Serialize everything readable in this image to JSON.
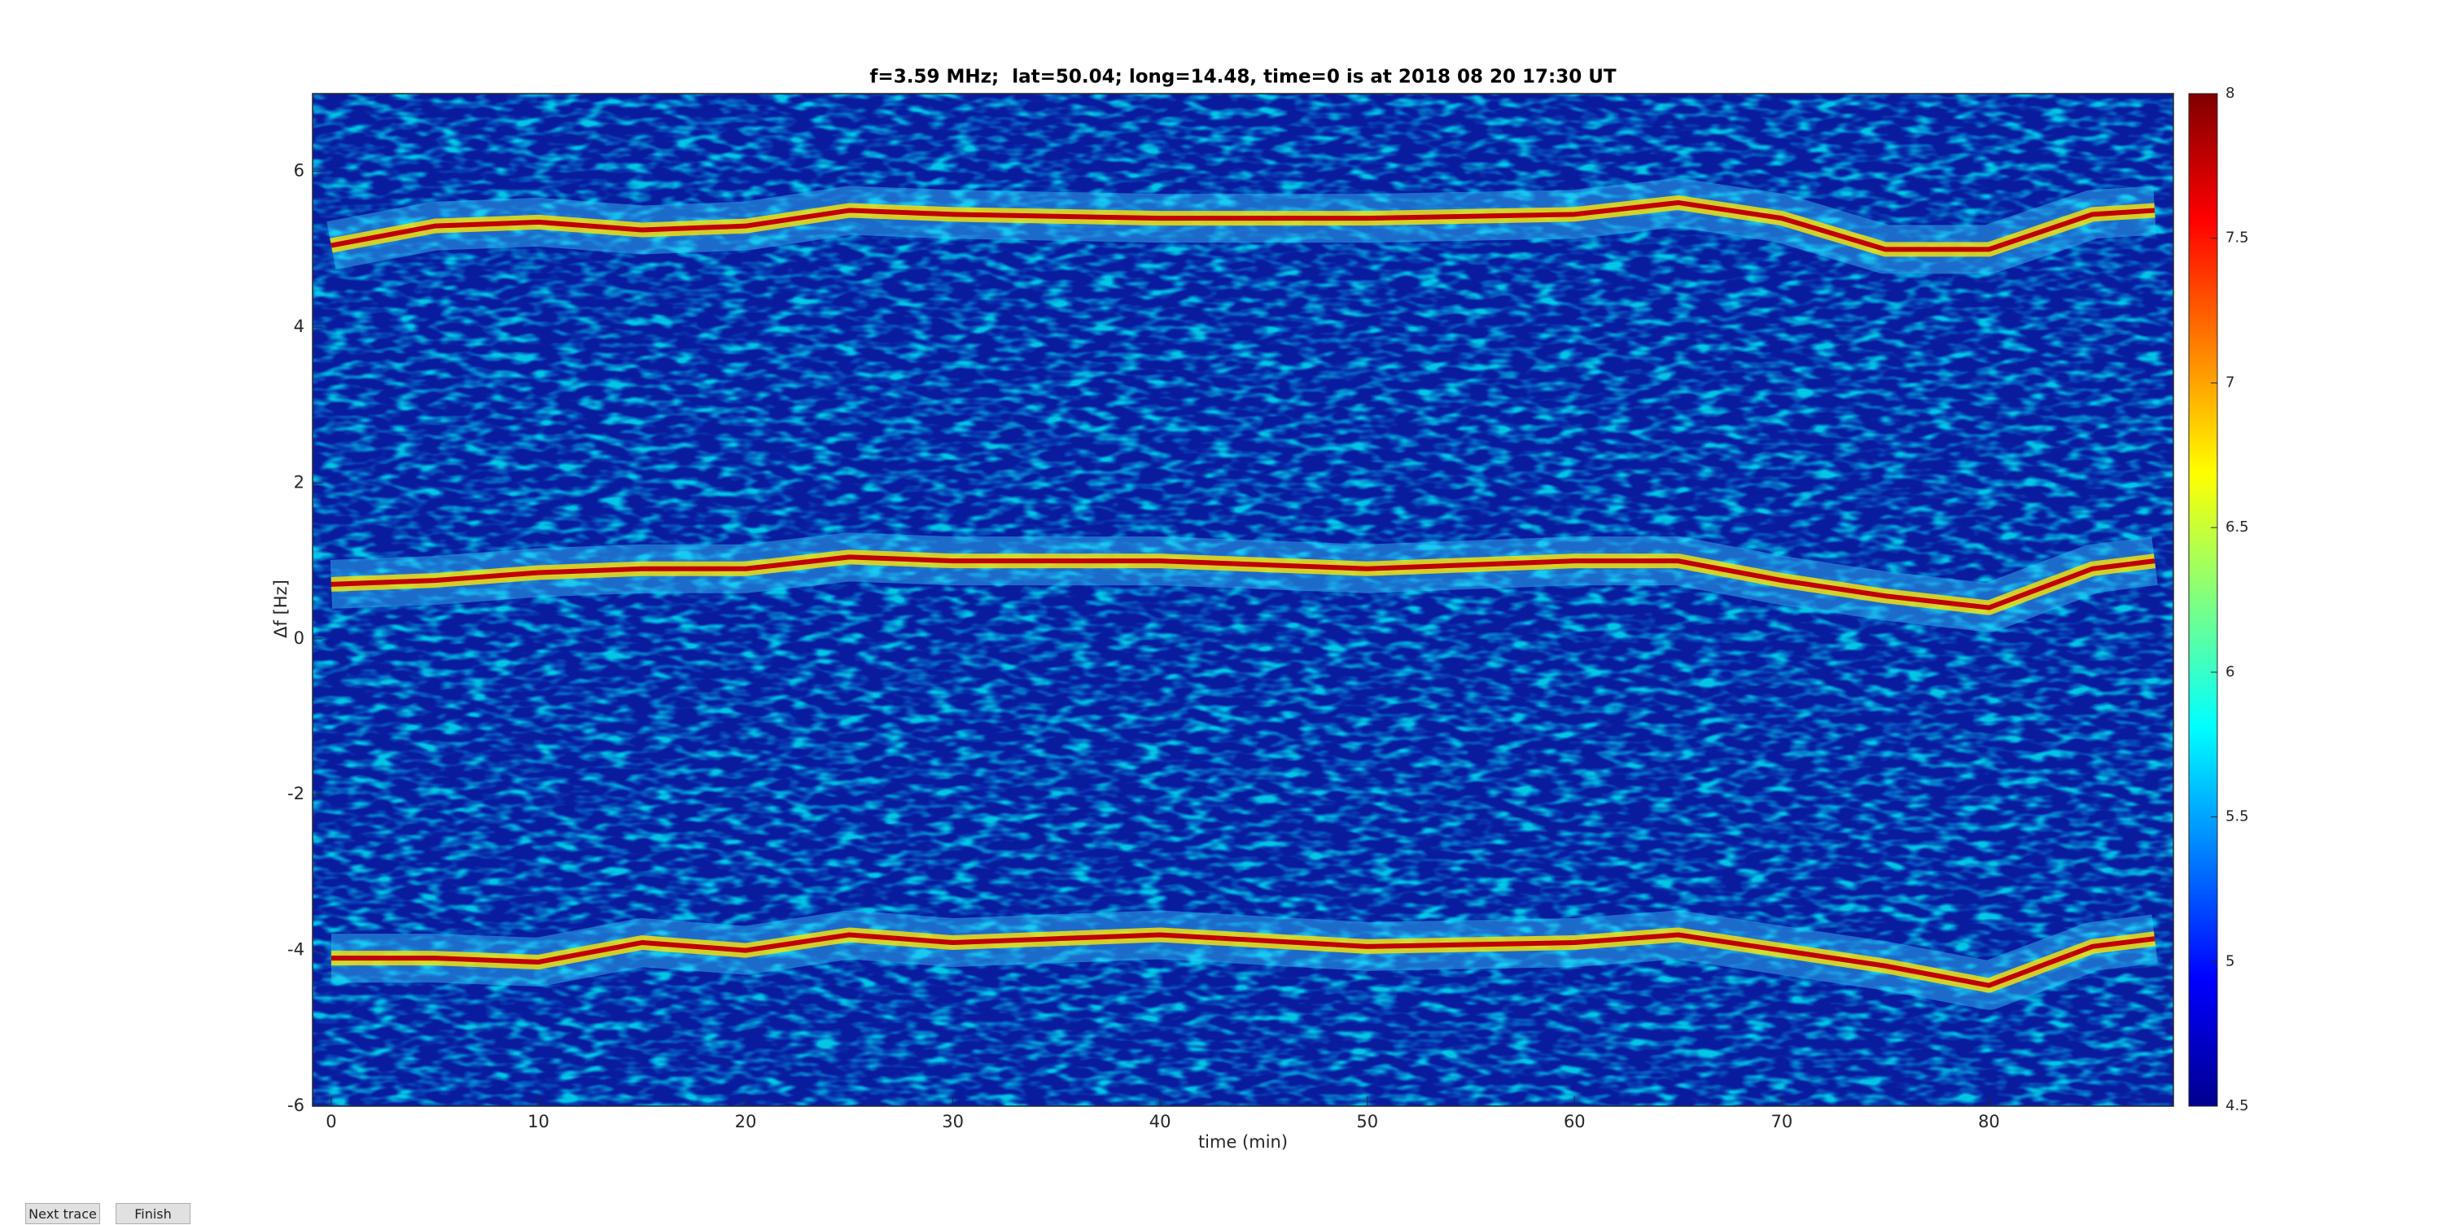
{
  "chart_data": {
    "type": "heatmap",
    "title": "f=3.59 MHz;  lat=50.04; long=14.48, time=0 is at 2018 08 20 17:30 UT",
    "x_label": "time (min)",
    "y_label": "Δf [Hz]",
    "xlim": [
      -0.9,
      88.9
    ],
    "xticks": [
      0,
      10,
      20,
      30,
      40,
      50,
      60,
      70,
      80
    ],
    "ylim": [
      -6,
      7
    ],
    "yticks": [
      -6,
      -4,
      -2,
      0,
      2,
      4,
      6
    ],
    "colorbar": {
      "lim": [
        4.5,
        8
      ],
      "ticks": [
        4.5,
        5,
        5.5,
        6,
        6.5,
        7,
        7.5,
        8
      ]
    },
    "x": [
      0,
      5,
      10,
      15,
      20,
      25,
      30,
      40,
      50,
      60,
      65,
      70,
      75,
      80,
      85,
      88
    ],
    "series": [
      {
        "color": "#c00000",
        "values": [
          5.05,
          5.3,
          5.35,
          5.25,
          5.3,
          5.5,
          5.45,
          5.4,
          5.4,
          5.45,
          5.6,
          5.4,
          5.0,
          5.0,
          5.45,
          5.5
        ]
      },
      {
        "color": "#c00000",
        "values": [
          0.7,
          0.75,
          0.85,
          0.9,
          0.9,
          1.05,
          1.0,
          1.0,
          0.9,
          1.0,
          1.0,
          0.75,
          0.55,
          0.4,
          0.9,
          1.0
        ]
      },
      {
        "color": "#c00000",
        "values": [
          -4.1,
          -4.1,
          -4.15,
          -3.9,
          -4.0,
          -3.8,
          -3.9,
          -3.8,
          -3.95,
          -3.9,
          -3.8,
          -4.0,
          -4.2,
          -4.45,
          -3.95,
          -3.85
        ]
      }
    ]
  },
  "ui": {
    "buttons": [
      "Next trace",
      "Finish"
    ]
  }
}
